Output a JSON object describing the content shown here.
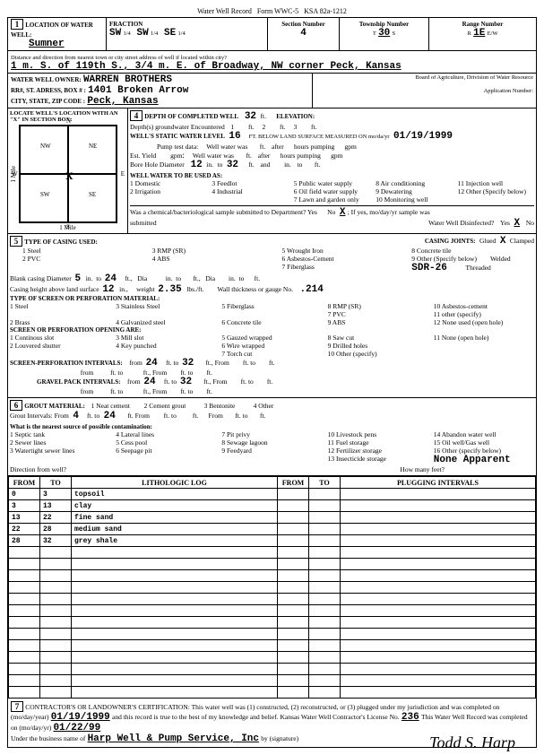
{
  "header": {
    "title": "Water Well Record",
    "form": "Form WWC-5",
    "ksa": "KSA 82a-1212"
  },
  "top": {
    "section1_num": "1",
    "location_lbl": "LOCATION OF WATER WELL:",
    "location_val": "Sumner",
    "fraction_lbl": "FRACTION",
    "frac1": "SW",
    "frac1q": "1/4",
    "frac2": "SW",
    "frac2q": "1/4",
    "frac3": "SE",
    "frac3q": "1/4",
    "secnum_lbl": "Section Number",
    "secnum": "4",
    "twp_lbl": "Township Number",
    "twp_t": "T",
    "twp": "30",
    "twp_s": "S",
    "rng_lbl": "Range Number",
    "rng_r": "R",
    "rng": "1E",
    "rng_ew": "E/W",
    "dist_lbl": "Distance and direction from nearest town or city  street address of well if located within city?",
    "dist_val": "1 m. S. of 119th S., 3/4 m. E. of Broadway, NW corner Peck, Kansas",
    "owner_lbl": "WATER WELL OWNER:",
    "owner": "WARREN BROTHERS",
    "addr_lbl": "RR#, ST. ADRESS, BOX # :",
    "addr": "1401 Broken Arrow",
    "city_lbl": "CITY, STATE, ZIP CODE :",
    "city": "Peck, Kansas",
    "board": "Board of Agriculture, Drivision of Water Resource",
    "appnum_lbl": "Application Number:"
  },
  "locbox": {
    "title": "LOCATE WELL'S LOCATION WITH AN \"X\" IN SECTION BOX:",
    "mile": "1 Mile",
    "n": "N",
    "s": "S",
    "e": "E",
    "w": "W",
    "nw": "NW",
    "ne": "NE",
    "sw": "SW",
    "se": "SE",
    "mark": "X"
  },
  "sec4": {
    "num": "4",
    "depth_lbl": "DEPTH OF COMPLETED WELL",
    "depth": "32",
    "ft": "ft.",
    "elev_lbl": "ELEVATION:",
    "gw_lbl": "Depth(s) groundwater Encountered",
    "gw1": "1",
    "gw2": "2",
    "gw3": "3",
    "static_lbl": "WELL'S STATIC WATER LEVEL",
    "static": "16",
    "below_lbl": "FT. BELOW LAND SURFACE MEASURED ON mo/da/yr",
    "date": "01/19/1999",
    "pump_lbl": "Pump test data:",
    "wellwater": "Well water was",
    "after": "after",
    "hours": "hours pumping",
    "gpm": "gpm",
    "estyield": "Est. Yield",
    "bore_lbl": "Bore Hole Diameter",
    "bore1": "12",
    "in": "in.",
    "to": "to",
    "bore2": "32",
    "and": "and",
    "use_lbl": "WELL WATER TO BE USED AS:",
    "u1": "1 Domestic",
    "u3": "3 Feedlot",
    "u5": "5 Public water supply",
    "u8": "8 Air conditioning",
    "u11": "11 Injection well",
    "u2": "2 Irrigation",
    "u4": "4 Industrial",
    "u6": "6 Oil field water supply",
    "u9": "9 Dewatering",
    "u12": "12 Other (Specify below)",
    "u7": "7 Lawn and garden only",
    "u10": "10 Monitoring well",
    "chem": "Was a chemical/bacteriological sample submitted to Department? Yes",
    "nox": "No",
    "x": "X",
    "ifyes": "; If yes, mo/day/yr sample was",
    "submitted": "submitted",
    "disinf": "Water Well Disinfected?",
    "yes": "Yes",
    "no": "No",
    "dx": "X"
  },
  "sec5": {
    "num": "5",
    "casing_lbl": "TYPE OF CASING USED:",
    "c1": "1 Steel",
    "c3": "3 RMP (SR)",
    "c5": "5 Wrought Iron",
    "c8": "8 Concrete tile",
    "c2": "2 PVC",
    "c4": "4 ABS",
    "c6": "6 Asbestos-Cement",
    "c9": "9 Other (Specify below)",
    "c7": "7 Fiberglass",
    "sdr": "SDR-26",
    "joints_lbl": "CASING JOINTS:",
    "jg": "Glued",
    "jx": "X",
    "jc": "Clamped",
    "jw": "Welded",
    "jt": "Threaded",
    "blank_lbl": "Blank casing Diameter",
    "bd": "5",
    "bto": "24",
    "dia": "Dia",
    "height_lbl": "Casing height above land surface",
    "ch": "12",
    "wt_lbl": "weight",
    "wt": "2.35",
    "lbs": "lbs./ft.",
    "wall_lbl": "Wall thickness or gauge No.",
    "wall": ".214",
    "screen_lbl": "TYPE OF SCREEN OR PERFORATION MATERIAL:",
    "s1": "1 Steel",
    "s3": "3 Stainless Steel",
    "s5": "5 Fiberglass",
    "s8": "8 RMP (SR)",
    "s10": "10 Asbestos-cement",
    "s11": "11 other (specify)",
    "s2": "2 Brass",
    "s4": "4 Galvanized steel",
    "s6": "6 Concrete tile",
    "s7": "7 PVC",
    "s9": "9 ABS",
    "s12": "12 None used (open hole)",
    "open_lbl": "SCREEN OR PERFORATION OPENING ARE:",
    "o1": "1 Continous slot",
    "o3": "3 Mill slot",
    "o5": "5 Gauzed wrapped",
    "o8": "8 Saw cut",
    "o11": "11 None (open hole)",
    "o2": "2 Louvered shutter",
    "o4": "4 Key punched",
    "o6": "6 Wire wrapped",
    "o9": "9 Drilled holes",
    "o7": "7 Torch cut",
    "o10": "10 Other (specify)",
    "spi_lbl": "SCREEN-PERFORATION INTERVALS:",
    "from": "from",
    "f1": "24",
    "ftto": "ft. to",
    "t1": "32",
    "ftfrom": "ft., From",
    "ftto2": "ft. to",
    "gpi_lbl": "GRAVEL PACK INTERVALS:",
    "gf": "24",
    "gt": "32"
  },
  "sec6": {
    "num": "6",
    "grout_lbl": "GROUT MATERIAL:",
    "g1": "1 Neat cement",
    "g2": "2 Cement grout",
    "g3": "3 Bentonite",
    "g4": "4 Other",
    "gint": "Grout Intervals: From",
    "gf": "4",
    "gto": "ft. to",
    "gt": "24",
    "ftfrom": "ft. From",
    "ftto": "ft. to",
    "contam_lbl": "What is the nearest source of possible contamination:",
    "n1": "1 Septic tank",
    "n4": "4 Lateral lines",
    "n7": "7 Pit privy",
    "n10": "10 Livestock pens",
    "n14": "14 Abandon water well",
    "n2": "2 Sewer lines",
    "n5": "5 Cess pool",
    "n8": "8 Sewage lagoon",
    "n11": "11 Fuel storage",
    "n15": "15 Oil well/Gas well",
    "n3": "3 Watertight sewer lines",
    "n6": "6 Seepage pit",
    "n9": "9 Feedyard",
    "n12": "12 Fertilizer storage",
    "n16": "16 Other (specify below)",
    "n13": "13 Insecticide storage",
    "none": "None Apparent",
    "dir_lbl": "Direction from well?",
    "feet_lbl": "How many feet?"
  },
  "log": {
    "from": "FROM",
    "to": "TO",
    "lith": "LITHOLOGIC LOG",
    "plug": "PLUGGING INTERVALS",
    "rows": [
      {
        "f": "0",
        "t": "3",
        "d": "topsoil"
      },
      {
        "f": "3",
        "t": "13",
        "d": "clay"
      },
      {
        "f": "13",
        "t": "22",
        "d": "fine sand"
      },
      {
        "f": "22",
        "t": "28",
        "d": "medium sand"
      },
      {
        "f": "28",
        "t": "32",
        "d": "grey shale"
      }
    ],
    "blankrows": 13
  },
  "sec7": {
    "num": "7",
    "cert": "CONTRACTOR'S OR LANDOWNER'S CERTIFICATION: This water well was (1) constructed, (2) reconstructed, or (3) plugged under my jurisdiction and was completed on (mo/day/year)",
    "date1": "01/19/1999",
    "cert2": "and this record is true to the best of my knowledge and belief. Kansas Water Well Contractor's License No.",
    "lic": "236",
    "cert3": "This Water Well Record was completed on (mo/day/yr)",
    "date2": "01/22/99",
    "cert4": "Under the business name of",
    "biz": "Harp Well & Pump Service, Inc",
    "by": "by (signature)",
    "sig": "Todd S. Harp"
  }
}
